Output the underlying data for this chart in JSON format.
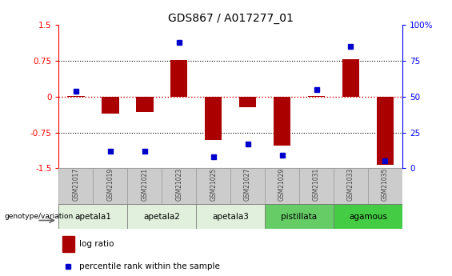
{
  "title": "GDS867 / A017277_01",
  "samples": [
    "GSM21017",
    "GSM21019",
    "GSM21021",
    "GSM21023",
    "GSM21025",
    "GSM21027",
    "GSM21029",
    "GSM21031",
    "GSM21033",
    "GSM21035"
  ],
  "log_ratio": [
    0.02,
    -0.35,
    -0.32,
    0.77,
    -0.9,
    -0.22,
    -1.02,
    0.02,
    0.79,
    -1.42
  ],
  "percentile_rank": [
    54,
    12,
    12,
    88,
    8,
    17,
    9,
    55,
    85,
    5
  ],
  "groups": [
    {
      "label": "apetala1",
      "start": 0,
      "end": 2,
      "color": "#e0f0dc"
    },
    {
      "label": "apetala2",
      "start": 2,
      "end": 4,
      "color": "#e0f0dc"
    },
    {
      "label": "apetala3",
      "start": 4,
      "end": 6,
      "color": "#e0f0dc"
    },
    {
      "label": "pistillata",
      "start": 6,
      "end": 8,
      "color": "#66cc66"
    },
    {
      "label": "agamous",
      "start": 8,
      "end": 10,
      "color": "#44cc44"
    }
  ],
  "ylim_left": [
    -1.5,
    1.5
  ],
  "ylim_right": [
    0,
    100
  ],
  "bar_color": "#aa0000",
  "dot_color": "#0000cc",
  "hline_color": "#cc0000",
  "background_color": "#ffffff",
  "sample_box_color": "#cccccc",
  "sample_text_color": "#444444"
}
